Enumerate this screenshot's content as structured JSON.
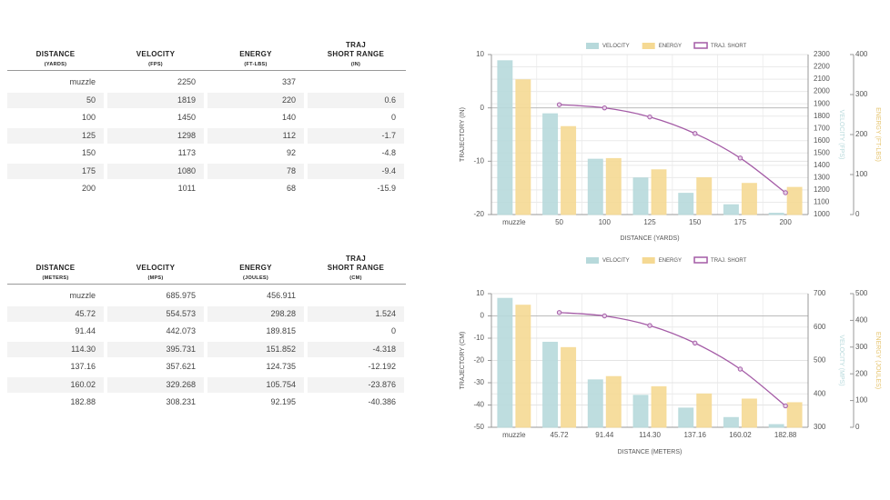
{
  "tables": [
    {
      "headers": [
        {
          "title": "DISTANCE",
          "unit": "(YARDS)"
        },
        {
          "title": "VELOCITY",
          "unit": "(FPS)"
        },
        {
          "title": "ENERGY",
          "unit": "(FT-LBS)"
        },
        {
          "title": "TRAJ\nSHORT RANGE",
          "unit": "(IN)"
        }
      ],
      "rows": [
        [
          "muzzle",
          "2250",
          "337",
          null
        ],
        [
          "50",
          "1819",
          "220",
          "0.6"
        ],
        [
          "100",
          "1450",
          "140",
          "0"
        ],
        [
          "125",
          "1298",
          "112",
          "-1.7"
        ],
        [
          "150",
          "1173",
          "92",
          "-4.8"
        ],
        [
          "175",
          "1080",
          "78",
          "-9.4"
        ],
        [
          "200",
          "1011",
          "68",
          "-15.9"
        ]
      ]
    },
    {
      "headers": [
        {
          "title": "DISTANCE",
          "unit": "(METERS)"
        },
        {
          "title": "VELOCITY",
          "unit": "(MPS)"
        },
        {
          "title": "ENERGY",
          "unit": "(JOULES)"
        },
        {
          "title": "TRAJ\nSHORT RANGE",
          "unit": "(CM)"
        }
      ],
      "rows": [
        [
          "muzzle",
          "685.975",
          "456.911",
          null
        ],
        [
          "45.72",
          "554.573",
          "298.28",
          "1.524"
        ],
        [
          "91.44",
          "442.073",
          "189.815",
          "0"
        ],
        [
          "114.30",
          "395.731",
          "151.852",
          "-4.318"
        ],
        [
          "137.16",
          "357.621",
          "124.735",
          "-12.192"
        ],
        [
          "160.02",
          "329.268",
          "105.754",
          "-23.876"
        ],
        [
          "182.88",
          "308.231",
          "92.195",
          "-40.386"
        ]
      ]
    }
  ],
  "chart_data": [
    {
      "type": "bar",
      "x_label": "DISTANCE (YARDS)",
      "y_label": "TRAJECTORY (IN)",
      "y2_label": "VELOCITY (FPS)",
      "y3_label": "ENERGY (FT-LBS)",
      "categories": [
        "muzzle",
        "50",
        "100",
        "125",
        "150",
        "175",
        "200"
      ],
      "series": [
        {
          "name": "VELOCITY",
          "type": "bar",
          "axis": "y2",
          "color": "#b7d9db",
          "values": [
            2250,
            1819,
            1450,
            1298,
            1173,
            1080,
            1011
          ]
        },
        {
          "name": "ENERGY",
          "type": "bar",
          "axis": "y3",
          "color": "#f5d993",
          "values": [
            337,
            220,
            140,
            112,
            92,
            78,
            68
          ]
        },
        {
          "name": "TRAJ. SHORT",
          "type": "line",
          "axis": "y",
          "color": "#a45ba6",
          "values": [
            null,
            0.6,
            0,
            -1.7,
            -4.8,
            -9.4,
            -15.9
          ]
        }
      ],
      "ylim": [
        -20,
        10
      ],
      "yticks": [
        -20,
        -10,
        0,
        10
      ],
      "y2lim": [
        1000,
        2300
      ],
      "y2ticks": [
        1000,
        1100,
        1200,
        1300,
        1400,
        1500,
        1600,
        1700,
        1800,
        1900,
        2000,
        2100,
        2200,
        2300
      ],
      "y3lim": [
        0,
        400
      ],
      "y3ticks": [
        0,
        100,
        200,
        300,
        400
      ],
      "grid": true,
      "legend": "top"
    },
    {
      "type": "bar",
      "x_label": "DISTANCE (METERS)",
      "y_label": "TRAJECTORY (CM)",
      "y2_label": "VELOCITY (MPS)",
      "y3_label": "ENERGY (JOULES)",
      "categories": [
        "muzzle",
        "45.72",
        "91.44",
        "114.30",
        "137.16",
        "160.02",
        "182.88"
      ],
      "series": [
        {
          "name": "VELOCITY",
          "type": "bar",
          "axis": "y2",
          "color": "#b7d9db",
          "values": [
            685.975,
            554.573,
            442.073,
            395.731,
            357.621,
            329.268,
            308.231
          ]
        },
        {
          "name": "ENERGY",
          "type": "bar",
          "axis": "y3",
          "color": "#f5d993",
          "values": [
            456.911,
            298.28,
            189.815,
            151.852,
            124.735,
            105.754,
            92.195
          ]
        },
        {
          "name": "TRAJ. SHORT",
          "type": "line",
          "axis": "y",
          "color": "#a45ba6",
          "values": [
            null,
            1.524,
            0,
            -4.318,
            -12.192,
            -23.876,
            -40.386
          ]
        }
      ],
      "ylim": [
        -50,
        10
      ],
      "yticks": [
        -50,
        -40,
        -30,
        -20,
        -10,
        0,
        10
      ],
      "y2lim": [
        300,
        700
      ],
      "y2ticks": [
        300,
        400,
        500,
        600,
        700
      ],
      "y3lim": [
        0,
        500
      ],
      "y3ticks": [
        0,
        100,
        200,
        300,
        400,
        500
      ],
      "grid": true,
      "legend": "top"
    }
  ]
}
